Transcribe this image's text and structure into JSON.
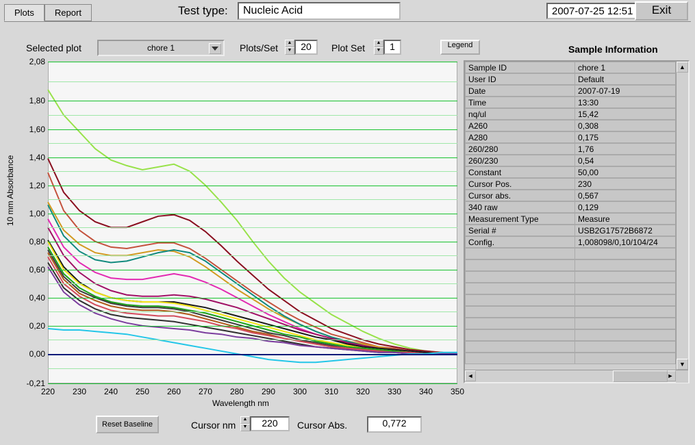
{
  "tabs": {
    "plots": "Plots",
    "report": "Report",
    "active": "plots"
  },
  "test_type": {
    "label": "Test type:",
    "value": "Nucleic Acid"
  },
  "datetime": "2007-07-25  12:51",
  "exit": "Exit",
  "controls": {
    "selected_plot_label": "Selected plot",
    "selected_plot_value": "chore 1",
    "plots_per_set_label": "Plots/Set",
    "plots_per_set_value": "20",
    "plot_set_label": "Plot Set",
    "plot_set_value": "1",
    "legend": "Legend"
  },
  "sample_info": {
    "title": "Sample Information",
    "rows": [
      [
        "Sample ID",
        "chore 1"
      ],
      [
        "User ID",
        "Default"
      ],
      [
        "Date",
        "2007-07-19"
      ],
      [
        "Time",
        "13:30"
      ],
      [
        "nq/ul",
        " 15,42"
      ],
      [
        "A260",
        " 0,308"
      ],
      [
        "A280",
        " 0,175"
      ],
      [
        "260/280",
        " 1,76"
      ],
      [
        "260/230",
        " 0,54"
      ],
      [
        "Constant",
        " 50,00"
      ],
      [
        "Cursor Pos.",
        " 230"
      ],
      [
        "Cursor abs.",
        " 0,567"
      ],
      [
        "340 raw",
        " 0,129"
      ],
      [
        "Measurement Type",
        "Measure"
      ],
      [
        "Serial #",
        "USB2G17572B6872"
      ],
      [
        "Config.",
        "1,008098/0,10/104/24"
      ]
    ],
    "empty_rows": 10
  },
  "chart": {
    "type": "line",
    "xlabel": "Wavelength nm",
    "ylabel": "10 mm Absorbance",
    "xlim": [
      220,
      350
    ],
    "ylim": [
      -0.21,
      2.08
    ],
    "xticks": [
      220,
      230,
      240,
      250,
      260,
      270,
      280,
      290,
      300,
      310,
      320,
      330,
      340,
      350
    ],
    "yticks": [
      -0.21,
      0.0,
      0.2,
      0.4,
      0.6,
      0.8,
      1.0,
      1.2,
      1.4,
      1.6,
      1.8,
      2.08
    ],
    "ytick_labels": [
      "-0,21",
      "0,00",
      "0,20",
      "0,40",
      "0,60",
      "0,80",
      "1,00",
      "1,20",
      "1,40",
      "1,60",
      "1,80",
      "2,08"
    ],
    "xtick_labels": [
      "220",
      "230",
      "240",
      "250",
      "260",
      "270",
      "280",
      "290",
      "300",
      "310",
      "320",
      "330",
      "340",
      "350"
    ],
    "background_color": "#f6f6f6",
    "major_grid_color": "#17c22e",
    "minor_grid_color": "#9fe7a8",
    "zero_line_color": "#001978",
    "axis_line_color": "#888888",
    "line_width": 2,
    "x": [
      220,
      225,
      230,
      235,
      240,
      245,
      250,
      255,
      260,
      265,
      270,
      275,
      280,
      285,
      290,
      295,
      300,
      305,
      310,
      315,
      320,
      325,
      330,
      335,
      340,
      345,
      350
    ],
    "series": [
      {
        "color": "#98e24a",
        "y": [
          1.88,
          1.7,
          1.58,
          1.46,
          1.38,
          1.34,
          1.31,
          1.33,
          1.35,
          1.3,
          1.2,
          1.08,
          0.95,
          0.8,
          0.66,
          0.54,
          0.44,
          0.36,
          0.28,
          0.22,
          0.16,
          0.11,
          0.07,
          0.04,
          0.02,
          0.01,
          0.0
        ]
      },
      {
        "color": "#8a1020",
        "y": [
          1.39,
          1.15,
          1.02,
          0.94,
          0.9,
          0.9,
          0.94,
          0.98,
          0.99,
          0.95,
          0.87,
          0.77,
          0.66,
          0.56,
          0.46,
          0.38,
          0.3,
          0.24,
          0.18,
          0.14,
          0.1,
          0.07,
          0.05,
          0.03,
          0.02,
          0.01,
          0.0
        ]
      },
      {
        "color": "#c4523d",
        "y": [
          1.29,
          1.02,
          0.88,
          0.8,
          0.76,
          0.75,
          0.77,
          0.79,
          0.79,
          0.75,
          0.68,
          0.6,
          0.52,
          0.44,
          0.37,
          0.3,
          0.24,
          0.19,
          0.14,
          0.11,
          0.08,
          0.05,
          0.04,
          0.02,
          0.01,
          0.01,
          0.0
        ]
      },
      {
        "color": "#d29a21",
        "y": [
          1.08,
          0.88,
          0.78,
          0.72,
          0.7,
          0.7,
          0.72,
          0.74,
          0.73,
          0.69,
          0.62,
          0.54,
          0.46,
          0.39,
          0.32,
          0.26,
          0.21,
          0.16,
          0.12,
          0.09,
          0.07,
          0.05,
          0.03,
          0.02,
          0.01,
          0.0,
          0.0
        ]
      },
      {
        "color": "#118a7e",
        "y": [
          1.06,
          0.84,
          0.73,
          0.67,
          0.65,
          0.66,
          0.69,
          0.72,
          0.74,
          0.72,
          0.66,
          0.58,
          0.5,
          0.42,
          0.34,
          0.27,
          0.21,
          0.16,
          0.12,
          0.09,
          0.06,
          0.04,
          0.03,
          0.02,
          0.01,
          0.0,
          0.0
        ]
      },
      {
        "color": "#e22ab2",
        "y": [
          0.96,
          0.76,
          0.65,
          0.58,
          0.54,
          0.53,
          0.53,
          0.55,
          0.57,
          0.55,
          0.51,
          0.46,
          0.4,
          0.34,
          0.28,
          0.23,
          0.18,
          0.14,
          0.11,
          0.08,
          0.05,
          0.04,
          0.02,
          0.01,
          0.01,
          0.0,
          0.0
        ]
      },
      {
        "color": "#a01065",
        "y": [
          0.9,
          0.7,
          0.58,
          0.5,
          0.45,
          0.42,
          0.41,
          0.41,
          0.42,
          0.41,
          0.39,
          0.36,
          0.33,
          0.29,
          0.25,
          0.21,
          0.17,
          0.14,
          0.11,
          0.08,
          0.06,
          0.04,
          0.03,
          0.02,
          0.01,
          0.0,
          0.0
        ]
      },
      {
        "color": "#1a1a1a",
        "y": [
          0.81,
          0.62,
          0.51,
          0.44,
          0.4,
          0.38,
          0.37,
          0.37,
          0.37,
          0.35,
          0.33,
          0.3,
          0.27,
          0.24,
          0.21,
          0.18,
          0.15,
          0.12,
          0.1,
          0.07,
          0.05,
          0.04,
          0.03,
          0.02,
          0.01,
          0.0,
          0.0
        ]
      },
      {
        "color": "#f2e315",
        "y": [
          0.8,
          0.6,
          0.5,
          0.44,
          0.4,
          0.38,
          0.37,
          0.37,
          0.36,
          0.34,
          0.31,
          0.28,
          0.25,
          0.22,
          0.19,
          0.16,
          0.13,
          0.1,
          0.08,
          0.06,
          0.04,
          0.03,
          0.02,
          0.01,
          0.0,
          0.0,
          0.0
        ]
      },
      {
        "color": "#1aa31a",
        "y": [
          0.76,
          0.57,
          0.47,
          0.41,
          0.37,
          0.35,
          0.34,
          0.34,
          0.33,
          0.31,
          0.29,
          0.26,
          0.23,
          0.2,
          0.17,
          0.14,
          0.12,
          0.09,
          0.07,
          0.05,
          0.04,
          0.03,
          0.02,
          0.01,
          0.0,
          0.0,
          0.0
        ]
      },
      {
        "color": "#3c3c3c",
        "y": [
          0.74,
          0.55,
          0.45,
          0.4,
          0.36,
          0.34,
          0.33,
          0.33,
          0.32,
          0.3,
          0.27,
          0.24,
          0.21,
          0.18,
          0.15,
          0.13,
          0.1,
          0.08,
          0.06,
          0.04,
          0.03,
          0.02,
          0.01,
          0.01,
          0.0,
          0.0,
          0.0
        ]
      },
      {
        "color": "#b05a1a",
        "y": [
          0.72,
          0.53,
          0.43,
          0.38,
          0.34,
          0.32,
          0.31,
          0.31,
          0.3,
          0.28,
          0.25,
          0.22,
          0.19,
          0.16,
          0.14,
          0.11,
          0.09,
          0.07,
          0.05,
          0.04,
          0.03,
          0.02,
          0.01,
          0.01,
          0.0,
          0.0,
          0.0
        ]
      },
      {
        "color": "#d24a5a",
        "y": [
          0.69,
          0.5,
          0.41,
          0.35,
          0.31,
          0.29,
          0.28,
          0.27,
          0.27,
          0.25,
          0.23,
          0.2,
          0.18,
          0.15,
          0.13,
          0.11,
          0.09,
          0.07,
          0.05,
          0.04,
          0.03,
          0.02,
          0.01,
          0.01,
          0.0,
          0.0,
          0.0
        ]
      },
      {
        "color": "#2f2f2f",
        "y": [
          0.65,
          0.47,
          0.38,
          0.32,
          0.28,
          0.26,
          0.25,
          0.24,
          0.23,
          0.21,
          0.19,
          0.17,
          0.15,
          0.13,
          0.11,
          0.09,
          0.07,
          0.05,
          0.04,
          0.03,
          0.02,
          0.01,
          0.01,
          0.0,
          0.0,
          0.0,
          0.0
        ]
      },
      {
        "color": "#7b3d9e",
        "y": [
          0.62,
          0.44,
          0.35,
          0.29,
          0.25,
          0.22,
          0.2,
          0.19,
          0.18,
          0.17,
          0.15,
          0.14,
          0.12,
          0.11,
          0.09,
          0.08,
          0.06,
          0.05,
          0.04,
          0.03,
          0.02,
          0.01,
          0.01,
          0.0,
          0.0,
          0.0,
          0.0
        ]
      },
      {
        "color": "#23c6e8",
        "y": [
          0.18,
          0.17,
          0.17,
          0.16,
          0.15,
          0.14,
          0.12,
          0.1,
          0.08,
          0.06,
          0.04,
          0.02,
          0.0,
          -0.02,
          -0.04,
          -0.05,
          -0.06,
          -0.06,
          -0.05,
          -0.04,
          -0.03,
          -0.02,
          -0.01,
          0.0,
          0.0,
          0.01,
          0.01
        ]
      }
    ]
  },
  "bottom": {
    "reset": "Reset Baseline",
    "cursor_nm_label": "Cursor nm",
    "cursor_nm_value": "220",
    "cursor_abs_label": "Cursor Abs.",
    "cursor_abs_value": "0,772"
  }
}
